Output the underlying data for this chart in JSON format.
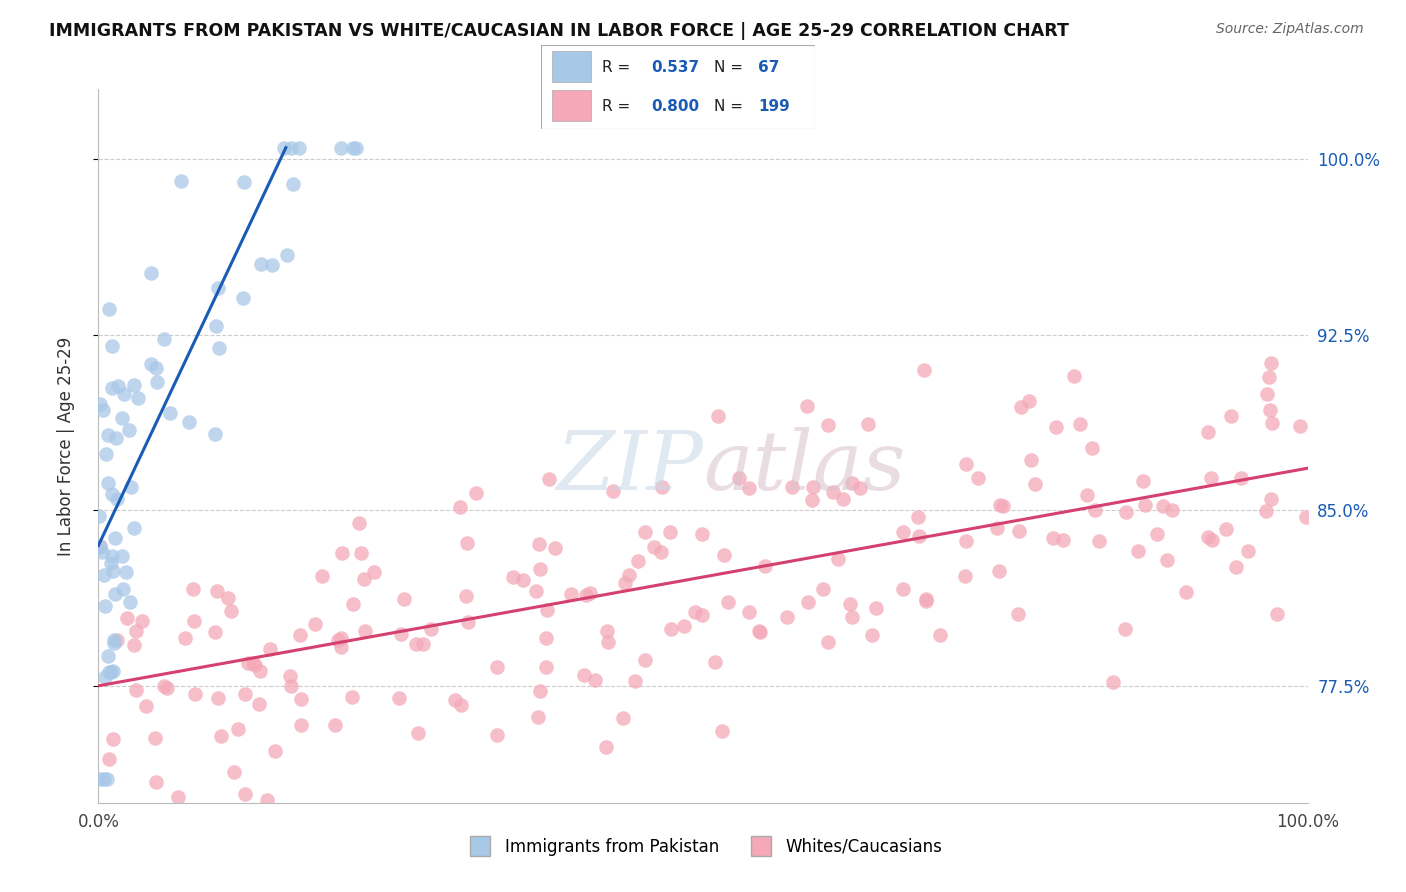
{
  "title": "IMMIGRANTS FROM PAKISTAN VS WHITE/CAUCASIAN IN LABOR FORCE | AGE 25-29 CORRELATION CHART",
  "source": "Source: ZipAtlas.com",
  "ylabel": "In Labor Force | Age 25-29",
  "xlim": [
    0.0,
    1.0
  ],
  "ylim": [
    0.725,
    1.03
  ],
  "yticks": [
    0.775,
    0.85,
    0.925,
    1.0
  ],
  "ytick_labels": [
    "77.5%",
    "85.0%",
    "92.5%",
    "100.0%"
  ],
  "xticks": [
    0.0,
    0.1,
    0.2,
    0.3,
    0.4,
    0.5,
    0.6,
    0.7,
    0.8,
    0.9,
    1.0
  ],
  "xtick_labels_show": [
    "0.0%",
    "100.0%"
  ],
  "blue_R": 0.537,
  "blue_N": 67,
  "pink_R": 0.8,
  "pink_N": 199,
  "blue_color": "#a8c8e8",
  "pink_color": "#f4a8b8",
  "blue_line_color": "#1a5cb5",
  "pink_line_color": "#d44070",
  "legend_label_blue": "Immigrants from Pakistan",
  "legend_label_pink": "Whites/Caucasians",
  "watermark": "ZIPatlas",
  "blue_line_x0": 0.0,
  "blue_line_y0": 0.835,
  "blue_line_x1": 0.155,
  "blue_line_y1": 1.005,
  "pink_line_x0": 0.0,
  "pink_line_y0": 0.775,
  "pink_line_x1": 1.0,
  "pink_line_y1": 0.868
}
